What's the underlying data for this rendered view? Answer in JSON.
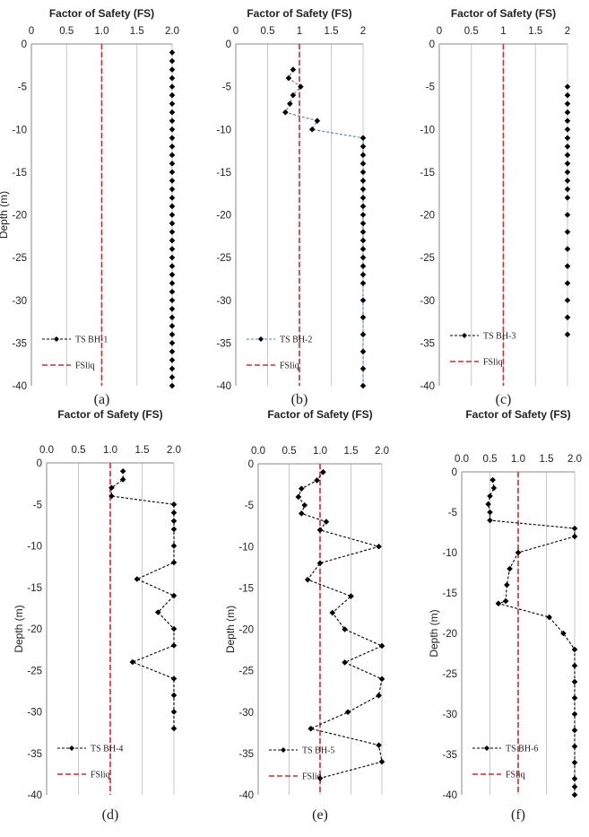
{
  "colors": {
    "grid": "#c8c8c8",
    "fsliq": "#e8202a",
    "series": "#000000",
    "link_blue": "#4a7fc1"
  },
  "chart_data": [
    {
      "type": "scatter",
      "panel": "(a)",
      "title": "Factor of Safety (FS)",
      "ylabel": "Depth (m)",
      "xlim": [
        0,
        2
      ],
      "ylim": [
        -40,
        0
      ],
      "xticks": [
        "0",
        "0.5",
        "1.0",
        "1.5",
        "2.0"
      ],
      "yticks": [
        "0",
        "-5",
        "-10",
        "-15",
        "-20",
        "-25",
        "-30",
        "-35",
        "-40"
      ],
      "fsliq": 1.0,
      "legend_loc": "bottom-left",
      "series": [
        {
          "name": "TS BH-1",
          "line": "none",
          "x": [
            2,
            2,
            2,
            2,
            2,
            2,
            2,
            2,
            2,
            2,
            2,
            2,
            2,
            2,
            2,
            2,
            2,
            2,
            2,
            2,
            2,
            2,
            2,
            2,
            2,
            2,
            2,
            2,
            2,
            2,
            2,
            2,
            2,
            2,
            2,
            2,
            2,
            2,
            2,
            2
          ],
          "y": [
            -1,
            -2,
            -3,
            -4,
            -5,
            -6,
            -7,
            -8,
            -10,
            -12,
            -14,
            -16,
            -18,
            -20,
            -22,
            -24,
            -26,
            -28,
            -30,
            -32,
            -34,
            -36,
            -38,
            -40,
            -9,
            -11,
            -13,
            -15,
            -17,
            -19,
            -21,
            -23,
            -25,
            -27,
            -29,
            -31,
            -33,
            -35,
            -37,
            -39
          ]
        }
      ],
      "fsliq_label": "FSliq"
    },
    {
      "type": "line",
      "panel": "(b)",
      "title": "Factor of Safety (FS)",
      "ylabel": "",
      "xlim": [
        0,
        2
      ],
      "ylim": [
        -40,
        0
      ],
      "xticks": [
        "0",
        "0.5",
        "1",
        "1.5",
        "2"
      ],
      "yticks": [
        "0",
        "-5",
        "-10",
        "-15",
        "-20",
        "-25",
        "-30",
        "-35",
        "-40"
      ],
      "fsliq": 1.0,
      "legend_loc": "bottom-left",
      "series": [
        {
          "name": "TS BH-2",
          "line": "blue-dashed",
          "x": [
            0.9,
            0.83,
            1.02,
            0.9,
            0.85,
            0.78,
            1.28,
            1.2,
            2,
            2,
            2,
            2,
            2,
            2,
            2,
            2,
            2,
            2,
            2,
            2,
            2,
            2,
            2,
            2,
            2,
            2,
            2,
            2,
            2,
            2,
            2,
            2
          ],
          "y": [
            -3,
            -4,
            -5,
            -6,
            -7,
            -8,
            -9,
            -10,
            -11,
            -12,
            -14,
            -16,
            -18,
            -20,
            -22,
            -24,
            -26,
            -28,
            -30,
            -32,
            -34,
            -36,
            -38,
            -40,
            -13,
            -15,
            -17,
            -19,
            -21,
            -23,
            -25,
            -27
          ]
        }
      ],
      "fsliq_label": "FSliq"
    },
    {
      "type": "scatter",
      "panel": "(c)",
      "title": "Factor of Safety (FS)",
      "ylabel": "",
      "xlim": [
        0,
        2
      ],
      "ylim": [
        -40,
        0
      ],
      "xticks": [
        "0",
        "0.5",
        "1",
        "1.5",
        "2"
      ],
      "yticks": [
        "0",
        "-5",
        "-10",
        "-15",
        "-20",
        "-25",
        "-30",
        "-35",
        "-40"
      ],
      "fsliq": 1.0,
      "legend_loc": "bottom-left",
      "series": [
        {
          "name": "TS BH-3",
          "line": "none",
          "x": [
            2,
            2,
            2,
            2,
            2,
            2,
            2,
            2,
            2,
            2,
            2,
            2,
            2,
            2,
            2,
            2,
            2,
            2,
            2,
            2,
            2,
            2
          ],
          "y": [
            -5,
            -6,
            -7,
            -8,
            -9,
            -10,
            -11,
            -12,
            -14,
            -16,
            -18,
            -20,
            -22,
            -24,
            -26,
            -28,
            -30,
            -32,
            -34,
            -13,
            -15,
            -17
          ]
        }
      ],
      "fsliq_label": "FSliq"
    },
    {
      "type": "line",
      "panel": "(d)",
      "title": "Factor of Safety (FS)",
      "ylabel": "Depth (m)",
      "xlim": [
        0,
        2
      ],
      "ylim": [
        -40,
        0
      ],
      "xticks": [
        "0.0",
        "0.5",
        "1.0",
        "1.5",
        "2.0"
      ],
      "yticks": [
        "0",
        "-5",
        "-10",
        "-15",
        "-20",
        "-25",
        "-30",
        "-35",
        "-40"
      ],
      "fsliq": 1.0,
      "legend_loc": "bottom-left",
      "series": [
        {
          "name": "TS BH-4",
          "line": "black-dashed",
          "x": [
            1.2,
            1.2,
            1.02,
            1.02,
            2,
            2,
            2,
            2,
            2,
            2,
            1.42,
            2,
            1.75,
            2,
            2,
            1.35,
            2,
            2,
            2,
            2
          ],
          "y": [
            -1,
            -2,
            -3,
            -4,
            -5,
            -6,
            -7,
            -8,
            -10,
            -12,
            -14,
            -16,
            -18,
            -20,
            -22,
            -24,
            -26,
            -28,
            -30,
            -32
          ]
        }
      ],
      "fsliq_label": "FSliq"
    },
    {
      "type": "line",
      "panel": "(e)",
      "title": "Factor of Safety (FS)",
      "ylabel": "Depth (m)",
      "xlim": [
        0,
        2
      ],
      "ylim": [
        -40,
        0
      ],
      "xticks": [
        "0.0",
        "0.5",
        "1.0",
        "1.5",
        "2.0"
      ],
      "yticks": [
        "0",
        "-5",
        "-10",
        "-15",
        "-20",
        "-25",
        "-30",
        "-35",
        "-40"
      ],
      "fsliq": 1.0,
      "legend_loc": "bottom-left",
      "series": [
        {
          "name": "TS BH-5",
          "line": "black-dashed",
          "x": [
            1.05,
            0.95,
            0.7,
            0.65,
            0.75,
            0.7,
            1.1,
            1.0,
            1.95,
            1.0,
            0.8,
            1.5,
            1.2,
            1.4,
            2.0,
            1.4,
            2.0,
            1.95,
            1.45,
            0.85,
            1.95,
            2.0,
            1.0
          ],
          "y": [
            -1,
            -2,
            -3,
            -4,
            -5,
            -6,
            -7,
            -8,
            -10,
            -12,
            -14,
            -16,
            -18,
            -20,
            -22,
            -24,
            -26,
            -28,
            -30,
            -32,
            -34,
            -36,
            -38
          ]
        }
      ],
      "fsliq_label": "FSliq"
    },
    {
      "type": "line",
      "panel": "(f)",
      "title": "Factor of Safety (FS)",
      "ylabel": "Depth (m)",
      "xlim": [
        0,
        2
      ],
      "ylim": [
        -40,
        0
      ],
      "xticks": [
        "0.0",
        "0.5",
        "1.0",
        "1.5",
        "2.0"
      ],
      "yticks": [
        "0",
        "-5",
        "-10",
        "-15",
        "-20",
        "-25",
        "-30",
        "-35",
        "-40"
      ],
      "fsliq": 1.0,
      "legend_loc": "bottom-left",
      "series": [
        {
          "name": "TS BH-6",
          "line": "black-dashed",
          "x": [
            0.55,
            0.57,
            0.5,
            0.47,
            0.5,
            0.5,
            2.0,
            2.0,
            1.0,
            0.85,
            0.8,
            0.78,
            0.65,
            1.55,
            1.8,
            2.0,
            2.0,
            2.0,
            2.0,
            2.0,
            2.0,
            2.0,
            2.0,
            2.0,
            2.0,
            2.0
          ],
          "y": [
            -1,
            -2,
            -3,
            -4,
            -5,
            -6,
            -7,
            -8,
            -10,
            -12,
            -14,
            -16,
            -16.3,
            -18,
            -20,
            -22,
            -24,
            -26,
            -28,
            -30,
            -32,
            -34,
            -36,
            -38,
            -40,
            -39
          ]
        }
      ],
      "fsliq_label": "FSliq"
    }
  ]
}
